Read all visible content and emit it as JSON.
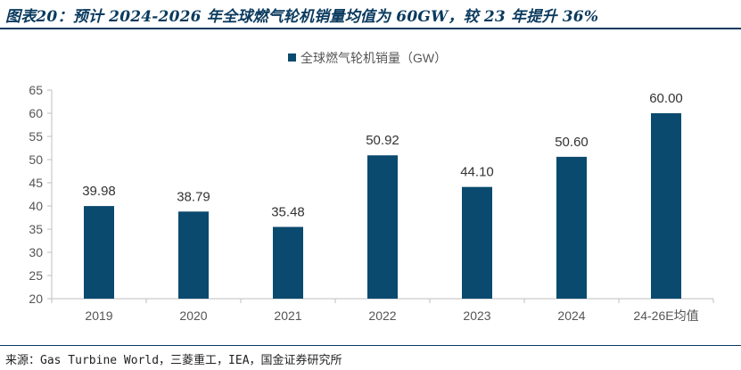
{
  "header": {
    "title": "图表20：预计 2024-2026 年全球燃气轮机销量均值为 60GW，较 23 年提升 36%"
  },
  "footer": {
    "source": "来源：Gas Turbine World，三菱重工，IEA，国金证券研究所"
  },
  "chart_data": {
    "type": "bar",
    "categories": [
      "2019",
      "2020",
      "2021",
      "2022",
      "2023",
      "2024",
      "24-26E均值"
    ],
    "series": [
      {
        "name": "全球燃气轮机销量（GW）",
        "values": [
          39.98,
          38.79,
          35.48,
          50.92,
          44.1,
          50.6,
          60.0
        ],
        "labels": [
          "39.98",
          "38.79",
          "35.48",
          "50.92",
          "44.10",
          "50.60",
          "60.00"
        ]
      }
    ],
    "ylim": [
      20,
      65
    ],
    "yticks": [
      20,
      25,
      30,
      35,
      40,
      45,
      50,
      55,
      60,
      65
    ],
    "grid": false,
    "legend": "top-center",
    "colors": {
      "bar": "#0b4a6f",
      "title": "#0a3a5e"
    }
  }
}
